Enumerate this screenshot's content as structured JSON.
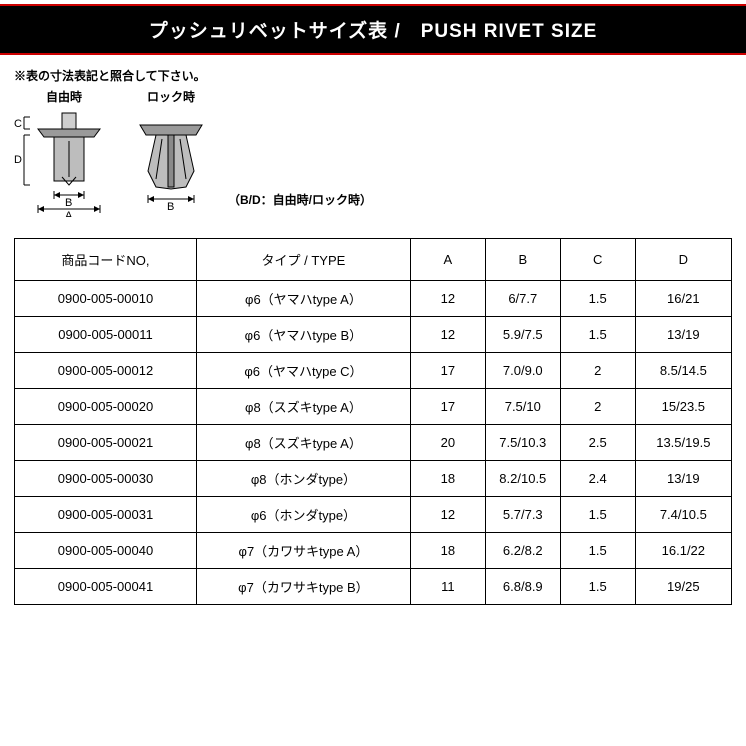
{
  "title": "プッシュリベットサイズ表 /　PUSH RIVET SIZE",
  "diagram": {
    "note": "※表の寸法表記と照合して下さい。",
    "free_label": "自由時",
    "lock_label": "ロック時",
    "bd_note": "（B/D：自由時/ロック時）",
    "dim_A": "A",
    "dim_B": "B",
    "dim_C": "C",
    "dim_D": "D"
  },
  "table": {
    "headers": {
      "code": "商品コードNO,",
      "type": "タイプ / TYPE",
      "a": "A",
      "b": "B",
      "c": "C",
      "d": "D"
    },
    "rows": [
      {
        "code": "0900-005-00010",
        "type": "φ6（ヤマハtype A）",
        "a": "12",
        "b": "6/7.7",
        "c": "1.5",
        "d": "16/21"
      },
      {
        "code": "0900-005-00011",
        "type": "φ6（ヤマハtype B）",
        "a": "12",
        "b": "5.9/7.5",
        "c": "1.5",
        "d": "13/19"
      },
      {
        "code": "0900-005-00012",
        "type": "φ6（ヤマハtype C）",
        "a": "17",
        "b": "7.0/9.0",
        "c": "2",
        "d": "8.5/14.5"
      },
      {
        "code": "0900-005-00020",
        "type": "φ8（スズキtype A）",
        "a": "17",
        "b": "7.5/10",
        "c": "2",
        "d": "15/23.5"
      },
      {
        "code": "0900-005-00021",
        "type": "φ8（スズキtype A）",
        "a": "20",
        "b": "7.5/10.3",
        "c": "2.5",
        "d": "13.5/19.5"
      },
      {
        "code": "0900-005-00030",
        "type": "φ8（ホンダtype）",
        "a": "18",
        "b": "8.2/10.5",
        "c": "2.4",
        "d": "13/19"
      },
      {
        "code": "0900-005-00031",
        "type": "φ6（ホンダtype）",
        "a": "12",
        "b": "5.7/7.3",
        "c": "1.5",
        "d": "7.4/10.5"
      },
      {
        "code": "0900-005-00040",
        "type": "φ7（カワサキtype A）",
        "a": "18",
        "b": "6.2/8.2",
        "c": "1.5",
        "d": "16.1/22"
      },
      {
        "code": "0900-005-00041",
        "type": "φ7（カワサキtype B）",
        "a": "11",
        "b": "6.8/8.9",
        "c": "1.5",
        "d": "19/25"
      }
    ]
  },
  "colors": {
    "title_bg": "#000000",
    "title_fg": "#ffffff",
    "accent": "#cc0000",
    "border": "#000000",
    "bg": "#ffffff"
  }
}
